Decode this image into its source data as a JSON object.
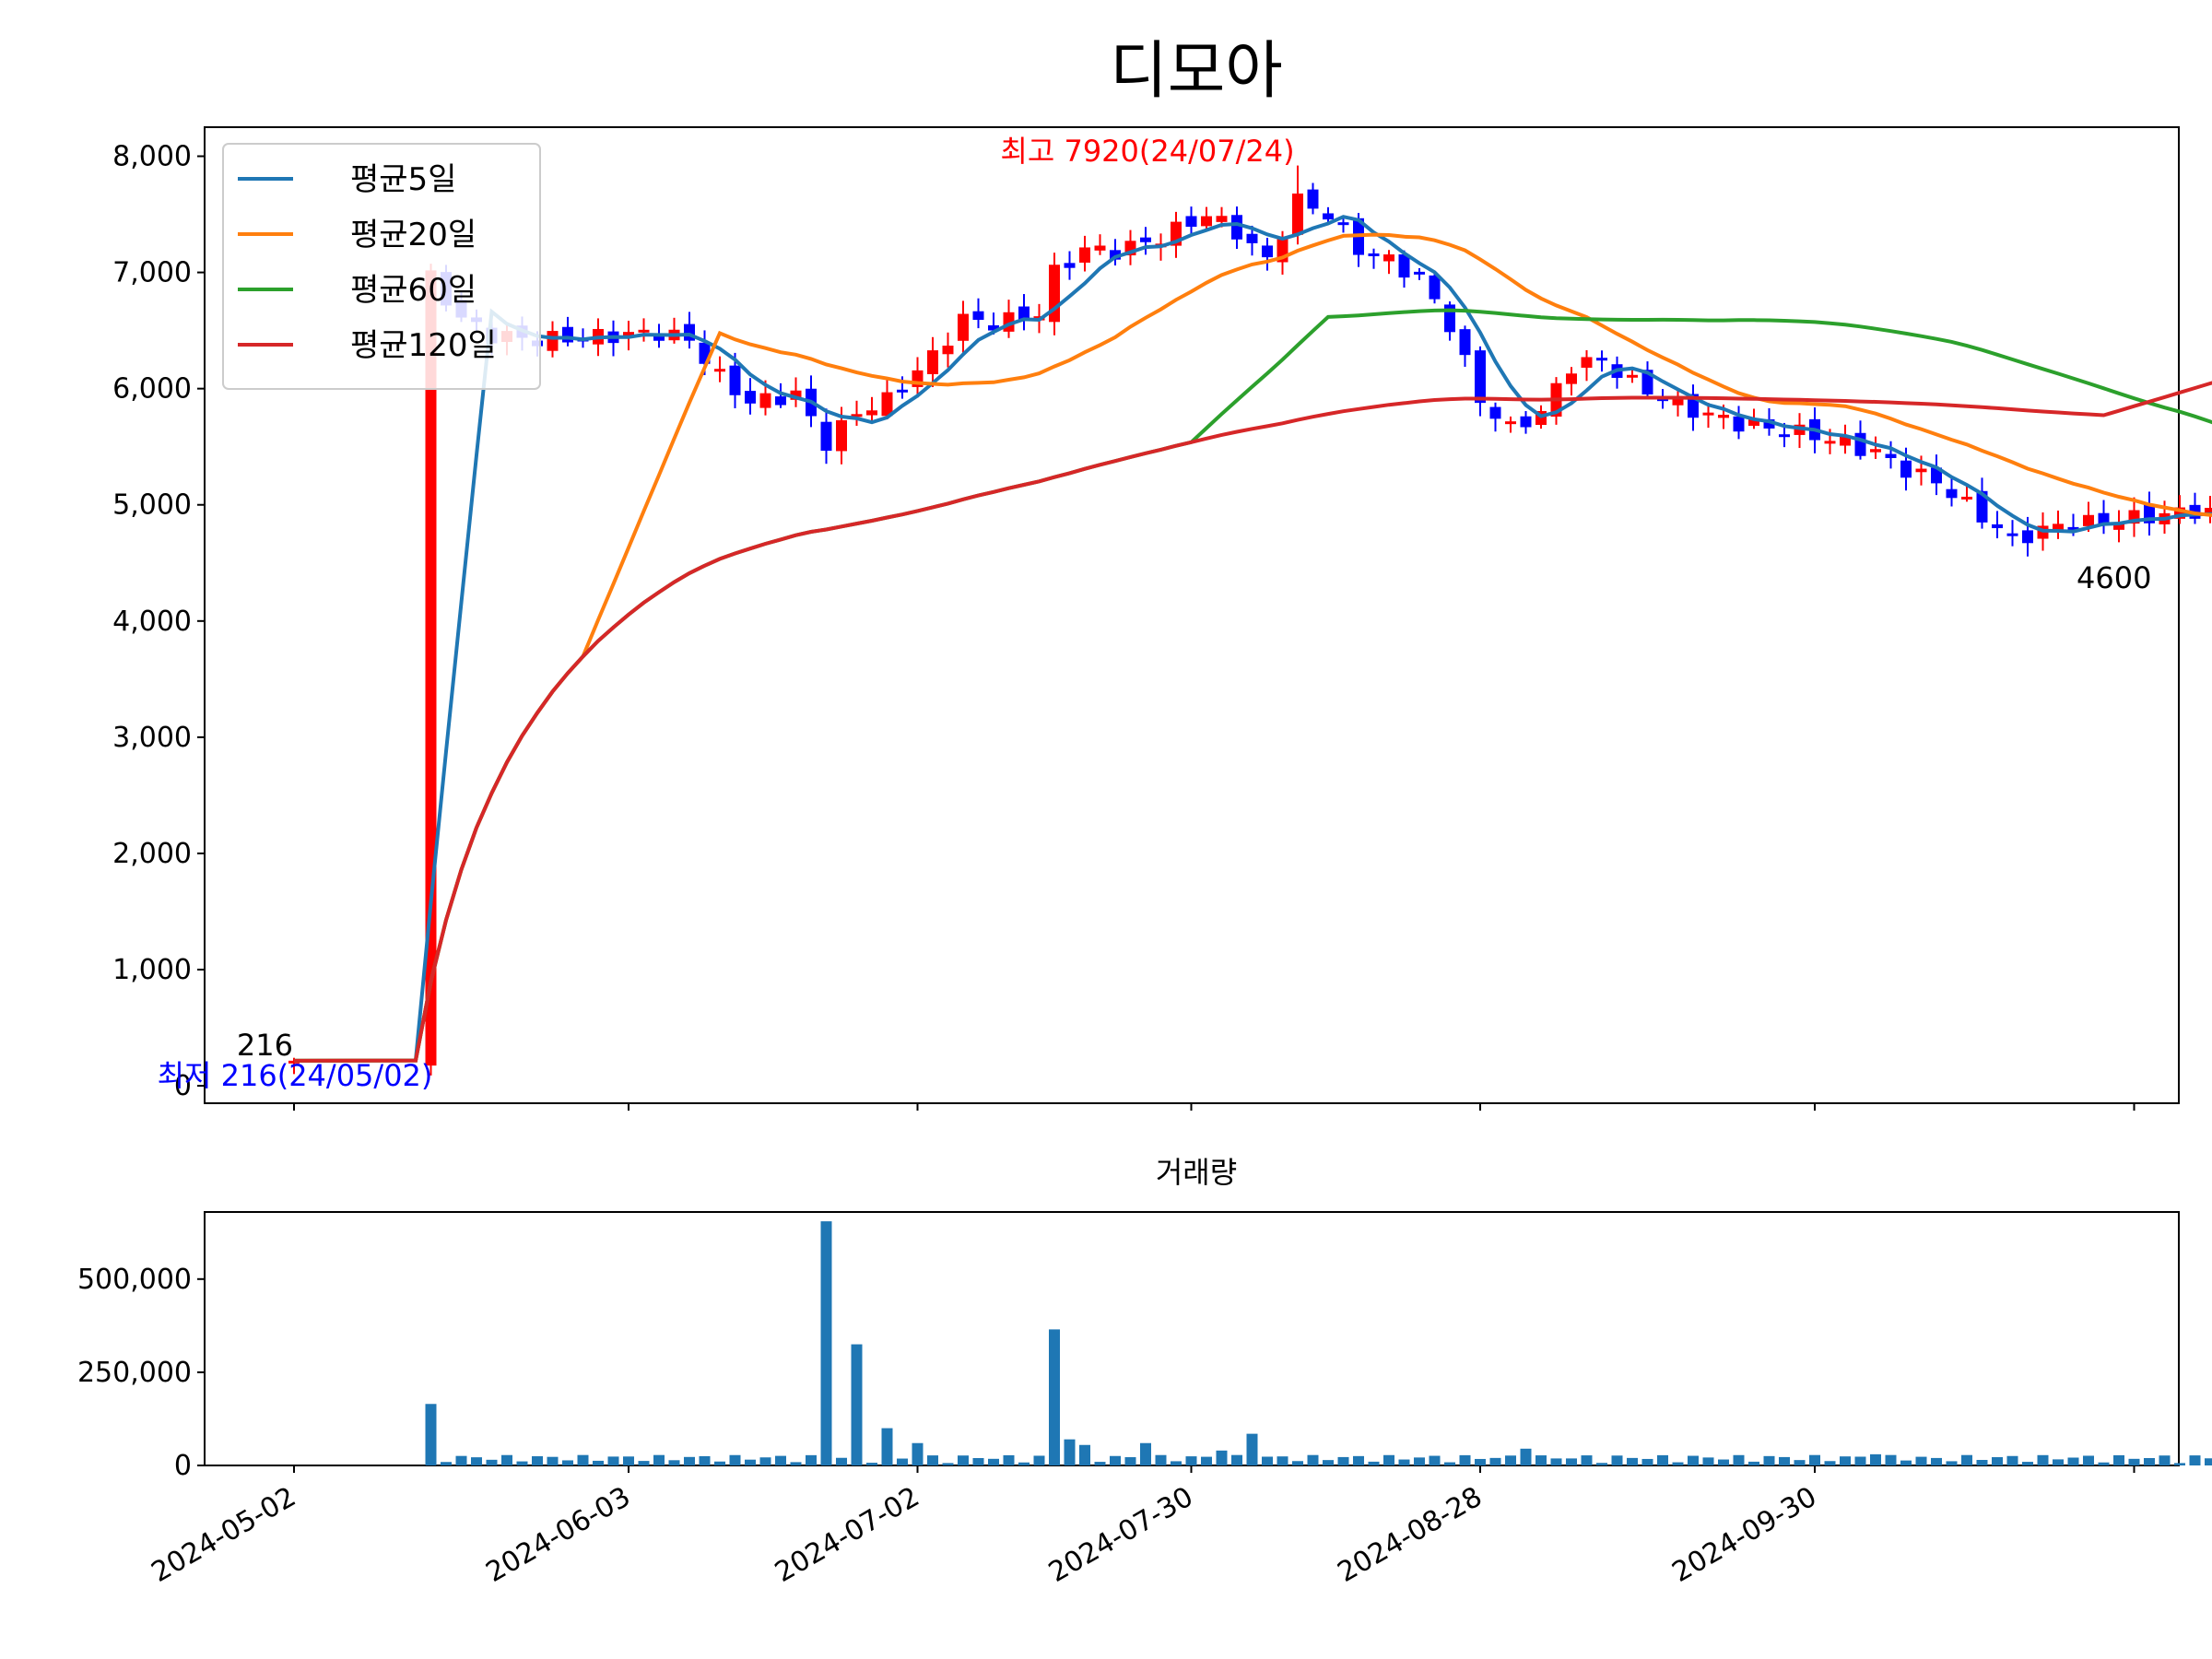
{
  "chart_data": [
    {
      "type": "candlestick",
      "title": "디모아",
      "ylim": [
        -150,
        8250
      ],
      "y_ticks": [
        "0",
        "1,000",
        "2,000",
        "3,000",
        "4,000",
        "5,000",
        "6,000",
        "7,000",
        "8,000"
      ],
      "y_tick_values": [
        0,
        1000,
        2000,
        3000,
        4000,
        5000,
        6000,
        7000,
        8000
      ],
      "legend_position": "upper-left",
      "colors": {
        "up": "#ff0000",
        "down": "#0000ff"
      },
      "series": [
        {
          "name": "평균5일",
          "color": "#1f77b4"
        },
        {
          "name": "평균20일",
          "color": "#ff7f0e"
        },
        {
          "name": "평균60일",
          "color": "#2ca02c"
        },
        {
          "name": "평균120일",
          "color": "#d62728"
        }
      ],
      "annotations": {
        "max_label": "최고 7920(24/07/24)",
        "min_label": "최저 216(24/05/02)",
        "first_value": "216",
        "last_value": "4600"
      }
    },
    {
      "type": "bar",
      "title": "거래량",
      "ylim": [
        0,
        680000
      ],
      "y_ticks": [
        "0",
        "250,000",
        "500,000"
      ],
      "y_tick_values": [
        0,
        250000,
        500000
      ],
      "x_ticks": [
        "2024-05-02",
        "2024-06-03",
        "2024-07-02",
        "2024-07-30",
        "2024-08-28",
        "2024-09-30"
      ],
      "color": "#1f77b4"
    }
  ]
}
